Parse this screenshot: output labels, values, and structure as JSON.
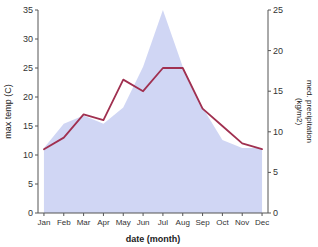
{
  "chart_data": {
    "type": "line",
    "categories": [
      "Jan",
      "Feb",
      "Mar",
      "Apr",
      "May",
      "Jun",
      "Jul",
      "Aug",
      "Sep",
      "Oct",
      "Nov",
      "Dec"
    ],
    "xlabel": "date (month)",
    "ylabel": "max temp (C)",
    "y2label": "med. precipitation\n(kg/m2)",
    "ylim": [
      0,
      35
    ],
    "yticks": [
      0,
      5,
      10,
      15,
      20,
      25,
      30,
      35
    ],
    "y2lim": [
      0,
      25
    ],
    "y2ticks": [
      0,
      5,
      10,
      15,
      20,
      25
    ],
    "grid": false,
    "series": [
      {
        "type": "area",
        "axis": "y2",
        "color": "#c0c8f0",
        "values": [
          8,
          11,
          12,
          11,
          13,
          18,
          25,
          18,
          13,
          9,
          8,
          8
        ]
      },
      {
        "type": "line",
        "color": "#a03050",
        "values": [
          11,
          13,
          17,
          16,
          23,
          21,
          25,
          25,
          18,
          15,
          12,
          11
        ]
      }
    ]
  }
}
